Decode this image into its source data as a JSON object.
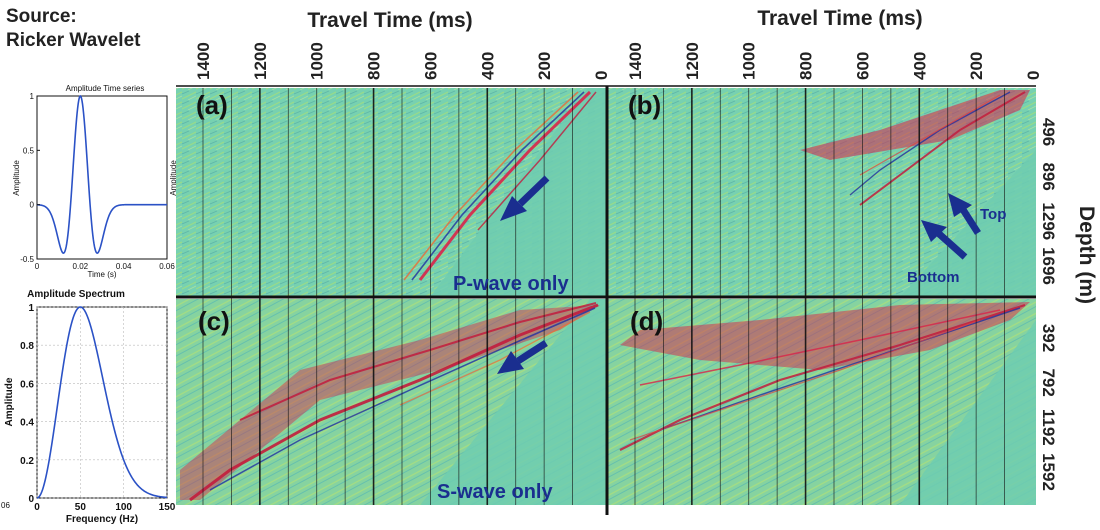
{
  "source": {
    "line1": "Source:",
    "line2": "Ricker Wavelet"
  },
  "panel_tick_left": "06",
  "colors": {
    "background": "#77d1b1",
    "wiggle_green": "#8ad37a",
    "event_red": "#d8234a",
    "event_blue": "#2030a0",
    "arrow": "#1a2e8f",
    "curve": "#2b52c6"
  },
  "chart_data": [
    {
      "type": "line",
      "title": "Amplitude Time series",
      "xlabel": "Time (s)",
      "ylabel": "Amplitude",
      "x_ticks": [
        "0",
        "0.02",
        "0.04",
        "0.06"
      ],
      "y_ticks": [
        "1",
        "0.5",
        "0",
        "-0.5"
      ],
      "xlim": [
        0,
        0.06
      ],
      "ylim": [
        -0.5,
        1
      ],
      "grid": false,
      "peak_time": 0.02,
      "frequency_hz": 50
    },
    {
      "type": "line",
      "title": "Amplitude Spectrum",
      "xlabel": "Frequency (Hz)",
      "ylabel": "Amplitude",
      "x_ticks": [
        "0",
        "50",
        "100",
        "150"
      ],
      "y_ticks": [
        "1",
        "0.8",
        "0.6",
        "0.4",
        "0.2",
        "0"
      ],
      "xlim": [
        0,
        150
      ],
      "ylim": [
        0,
        1
      ],
      "grid": true,
      "peak_frequency_hz": 50
    },
    {
      "type": "heatmap",
      "x_axis_title": "Travel Time (ms)",
      "y_axis_title": "Depth (m)",
      "x_ticks": [
        "1400",
        "1200",
        "1000",
        "800",
        "600",
        "400",
        "200",
        "0"
      ],
      "depth_ticks_upper": [
        "496",
        "896",
        "1296",
        "1696"
      ],
      "depth_ticks_lower": [
        "392",
        "792",
        "1192",
        "1592"
      ],
      "panels": [
        {
          "label": "(a)"
        },
        {
          "label": "(b)"
        },
        {
          "label": "(c)"
        },
        {
          "label": "(d)"
        }
      ],
      "row_labels": [
        "P-wave only",
        "S-wave only"
      ],
      "annotations": [
        "Top",
        "Bottom"
      ]
    }
  ]
}
